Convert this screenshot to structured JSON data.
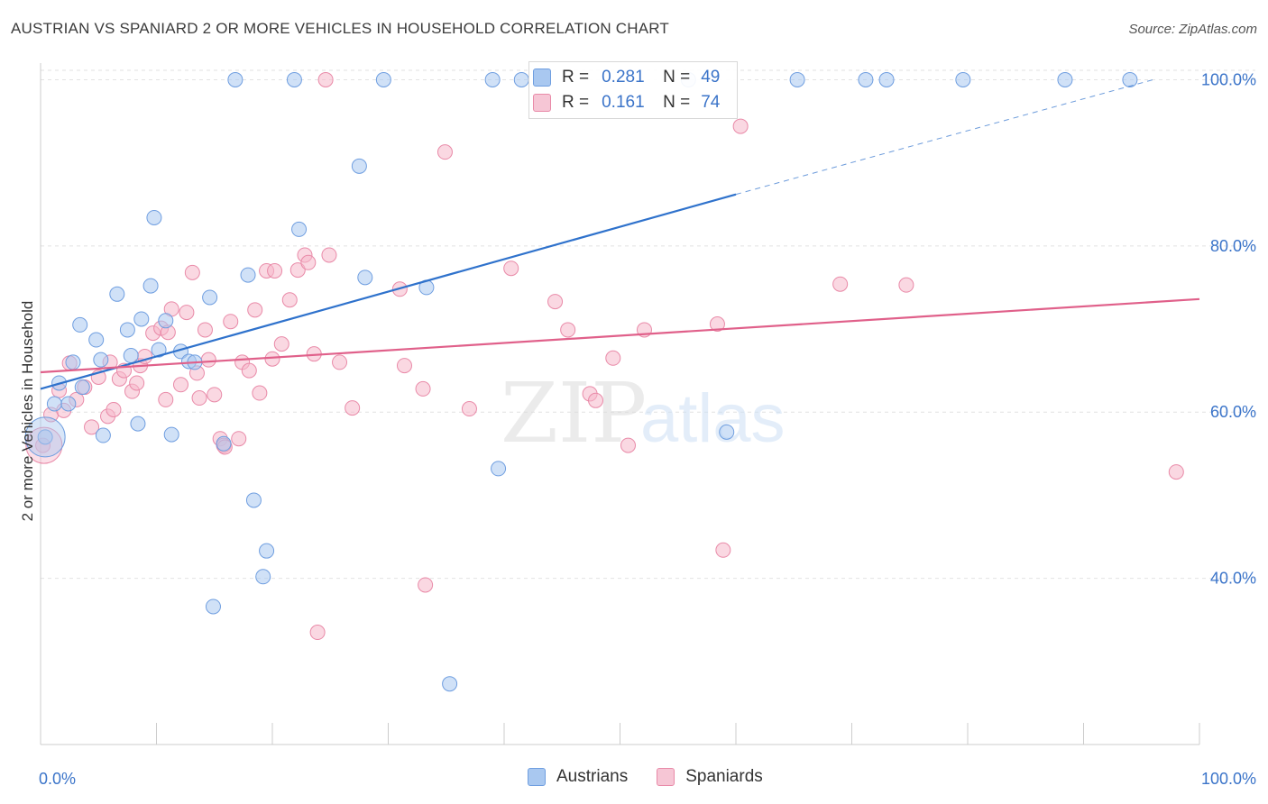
{
  "header": {
    "title": "AUSTRIAN VS SPANIARD 2 OR MORE VEHICLES IN HOUSEHOLD CORRELATION CHART",
    "source": "Source: ZipAtlas.com"
  },
  "legend": {
    "austrians": {
      "r_label": "R =",
      "r_value": "0.281",
      "n_label": "N =",
      "n_value": "49"
    },
    "spaniards": {
      "r_label": "R =",
      "r_value": "0.161",
      "n_label": "N =",
      "n_value": "74"
    }
  },
  "bottom_legend": {
    "austrians": "Austrians",
    "spaniards": "Spaniards"
  },
  "watermark": {
    "zip": "ZIP",
    "atlas": "atlas"
  },
  "colors": {
    "austrians_fill": "#a9c8f0",
    "austrians_stroke": "#6f9ee0",
    "austrians_line": "#2f72cc",
    "spaniards_fill": "#f6b8cb",
    "spaniards_stroke": "#e98aa8",
    "spaniards_line": "#e0608a",
    "tick_text": "#3b74c9",
    "grid": "#e2e2e2"
  },
  "chart_data": {
    "type": "scatter",
    "title": "AUSTRIAN VS SPANIARD 2 OR MORE VEHICLES IN HOUSEHOLD CORRELATION CHART",
    "xlabel": "",
    "ylabel": "2 or more Vehicles in Household",
    "xlim": [
      0,
      100
    ],
    "ylim": [
      20,
      102
    ],
    "x_tick_labels": [
      "0.0%",
      "100.0%"
    ],
    "y_ticks": [
      40,
      60,
      80,
      100
    ],
    "y_tick_labels": [
      "40.0%",
      "60.0%",
      "80.0%",
      "100.0%"
    ],
    "grid": true,
    "legend_position": "top-center",
    "series": [
      {
        "name": "Austrians",
        "r": 0.281,
        "n": 49,
        "trend": {
          "x0": 0,
          "y0": 62.8,
          "x1": 60,
          "y1": 86.2,
          "dashed_to_x": 96,
          "dashed_to_y": 100
        },
        "points": [
          [
            0.4,
            57.0
          ],
          [
            1.2,
            61.0
          ],
          [
            1.6,
            63.5
          ],
          [
            2.4,
            61.0
          ],
          [
            2.8,
            66.0
          ],
          [
            3.6,
            63.0
          ],
          [
            3.4,
            70.5
          ],
          [
            4.8,
            68.7
          ],
          [
            5.2,
            66.3
          ],
          [
            5.4,
            57.2
          ],
          [
            6.6,
            74.2
          ],
          [
            7.5,
            69.9
          ],
          [
            7.8,
            66.8
          ],
          [
            8.4,
            58.6
          ],
          [
            8.7,
            71.2
          ],
          [
            9.5,
            75.2
          ],
          [
            9.8,
            83.4
          ],
          [
            10.2,
            67.5
          ],
          [
            10.8,
            71.0
          ],
          [
            11.3,
            57.3
          ],
          [
            12.1,
            67.3
          ],
          [
            12.8,
            66.1
          ],
          [
            13.3,
            66.0
          ],
          [
            14.6,
            73.8
          ],
          [
            14.9,
            36.6
          ],
          [
            15.8,
            56.2
          ],
          [
            16.8,
            100.0
          ],
          [
            17.9,
            76.5
          ],
          [
            18.4,
            49.4
          ],
          [
            19.2,
            40.2
          ],
          [
            19.5,
            43.3
          ],
          [
            21.9,
            100.0
          ],
          [
            22.3,
            82.0
          ],
          [
            27.5,
            89.6
          ],
          [
            28.0,
            76.2
          ],
          [
            29.6,
            100.0
          ],
          [
            33.3,
            75.0
          ],
          [
            35.3,
            27.3
          ],
          [
            39.0,
            100.0
          ],
          [
            39.5,
            53.2
          ],
          [
            41.5,
            100.0
          ],
          [
            55.9,
            100.0
          ],
          [
            59.2,
            57.6
          ],
          [
            65.3,
            100.0
          ],
          [
            71.2,
            100.0
          ],
          [
            73.0,
            100.0
          ],
          [
            79.6,
            100.0
          ],
          [
            88.4,
            100.0
          ],
          [
            94.0,
            100.0
          ]
        ]
      },
      {
        "name": "Spaniards",
        "r": 0.161,
        "n": 74,
        "trend": {
          "x0": 0,
          "y0": 64.8,
          "x1": 100,
          "y1": 73.6
        },
        "points": [
          [
            0.2,
            56.0
          ],
          [
            0.9,
            59.7
          ],
          [
            1.6,
            62.6
          ],
          [
            2.5,
            65.9
          ],
          [
            3.1,
            61.5
          ],
          [
            3.8,
            63.0
          ],
          [
            4.4,
            58.2
          ],
          [
            5.0,
            64.2
          ],
          [
            5.8,
            59.5
          ],
          [
            6.3,
            60.3
          ],
          [
            6.8,
            64.0
          ],
          [
            7.2,
            65.0
          ],
          [
            7.9,
            62.5
          ],
          [
            8.3,
            63.5
          ],
          [
            8.6,
            65.6
          ],
          [
            9.0,
            66.7
          ],
          [
            9.7,
            69.5
          ],
          [
            10.4,
            70.1
          ],
          [
            10.8,
            61.5
          ],
          [
            11.0,
            69.6
          ],
          [
            11.3,
            72.4
          ],
          [
            12.1,
            63.3
          ],
          [
            12.6,
            72.0
          ],
          [
            13.1,
            76.8
          ],
          [
            13.7,
            61.7
          ],
          [
            14.2,
            69.9
          ],
          [
            14.5,
            66.3
          ],
          [
            15.0,
            62.1
          ],
          [
            15.5,
            56.8
          ],
          [
            15.8,
            56.0
          ],
          [
            16.4,
            70.9
          ],
          [
            17.1,
            56.8
          ],
          [
            17.4,
            66.0
          ],
          [
            18.0,
            65.0
          ],
          [
            18.5,
            72.3
          ],
          [
            18.9,
            62.3
          ],
          [
            19.5,
            77.0
          ],
          [
            20.2,
            77.0
          ],
          [
            20.8,
            68.2
          ],
          [
            21.5,
            73.5
          ],
          [
            22.2,
            77.1
          ],
          [
            22.8,
            78.9
          ],
          [
            23.1,
            78.0
          ],
          [
            23.6,
            67.0
          ],
          [
            23.9,
            33.5
          ],
          [
            24.6,
            100.0
          ],
          [
            24.9,
            78.9
          ],
          [
            25.8,
            66.0
          ],
          [
            26.9,
            60.5
          ],
          [
            31.0,
            74.8
          ],
          [
            31.4,
            65.6
          ],
          [
            33.0,
            62.8
          ],
          [
            33.2,
            39.2
          ],
          [
            34.9,
            91.3
          ],
          [
            37.0,
            60.4
          ],
          [
            40.6,
            77.3
          ],
          [
            44.4,
            73.3
          ],
          [
            45.5,
            69.9
          ],
          [
            47.4,
            62.2
          ],
          [
            47.9,
            61.4
          ],
          [
            49.4,
            66.5
          ],
          [
            50.7,
            56.0
          ],
          [
            52.1,
            69.9
          ],
          [
            58.4,
            70.6
          ],
          [
            58.9,
            43.4
          ],
          [
            60.4,
            94.4
          ],
          [
            69.0,
            75.4
          ],
          [
            74.7,
            75.3
          ],
          [
            98.0,
            52.8
          ],
          [
            15.9,
            55.8
          ],
          [
            2.0,
            60.2
          ],
          [
            6.0,
            66.0
          ],
          [
            13.5,
            64.7
          ],
          [
            20.0,
            66.4
          ]
        ]
      }
    ]
  }
}
